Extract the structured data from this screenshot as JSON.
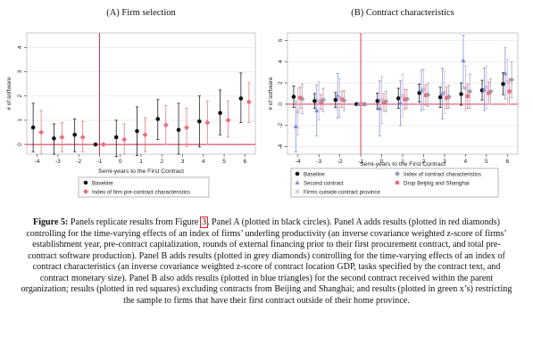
{
  "caption": {
    "label": "Figure 5:",
    "text_before_ref": " Panels replicate results from Figure ",
    "ref": "3",
    "text_after_ref": ". Panel A (plotted in black circles). Panel A adds results (plotted in red diamonds) controlling for the time-varying effects of an index of firms’ underling productivity (an inverse covariance weighted z-score of firms’ establishment year, pre-contract capitalization, rounds of external financing prior to their first procurement contract, and total pre-contract software production). Panel B adds results (plotted in grey diamonds) controlling for the time-varying effects of an index of contract characteristics (an inverse covariance weighted z-score of contract location GDP, tasks specified by the contract text, and contract monetary size). Panel B also adds results (plotted in blue triangles) for the second contract received within the parent organization; results (plotted in red squares) excluding contracts from Beijing and Shanghai; and results (plotted in green x’s) restricting the sample to firms that have their first contract outside of their home province."
  },
  "colors": {
    "baseline": "#111111",
    "red": "#e8707a",
    "grey": "#9aa0b4",
    "blue": "#7a8fd6",
    "green": "#c8aad6",
    "vline": "#d62040",
    "hline": "#d62040",
    "grid": "#e9e9e9"
  },
  "chart_data": [
    {
      "type": "scatter",
      "title": "(A) Firm selection",
      "xlabel": "Semi-years to the First Contract",
      "ylabel": "# of software",
      "x": [
        -4,
        -3,
        -2,
        -1,
        0,
        1,
        2,
        3,
        4,
        5,
        6
      ],
      "xlim": [
        -4.5,
        6.5
      ],
      "ylim": [
        -0.4,
        4.6
      ],
      "yticks": [
        0,
        1,
        2,
        3,
        4
      ],
      "grid": true,
      "reference_lines": {
        "x": -1,
        "y": 0
      },
      "legend_position": "bottom",
      "series": [
        {
          "name": "Baseline",
          "marker": "circle",
          "color": "baseline",
          "y": [
            0.7,
            0.25,
            0.4,
            0.0,
            0.3,
            0.55,
            1.05,
            0.6,
            0.95,
            1.3,
            1.9
          ],
          "lo": [
            -0.3,
            -0.4,
            -0.3,
            0.0,
            -0.5,
            -0.45,
            0.2,
            -0.4,
            -0.1,
            0.4,
            0.9
          ],
          "hi": [
            1.7,
            0.85,
            1.05,
            0.0,
            1.0,
            1.55,
            1.85,
            1.7,
            2.0,
            2.25,
            2.95
          ]
        },
        {
          "name": "Index of firm pre-contract characteristics",
          "marker": "diamond",
          "color": "red",
          "y": [
            0.5,
            0.3,
            0.3,
            0.0,
            0.2,
            0.4,
            0.8,
            0.7,
            0.9,
            1.0,
            1.75
          ],
          "lo": [
            -0.4,
            -0.3,
            -0.3,
            0.0,
            -0.4,
            -0.3,
            0.0,
            -0.1,
            0.0,
            0.3,
            0.9
          ],
          "hi": [
            1.4,
            0.9,
            0.95,
            0.0,
            0.85,
            1.1,
            1.6,
            1.5,
            1.8,
            1.8,
            2.55
          ]
        }
      ]
    },
    {
      "type": "scatter",
      "title": "(B) Contract characteristics",
      "xlabel": "Semi-years to the First Contract",
      "ylabel": "# of software",
      "x": [
        -4,
        -3,
        -2,
        -1,
        0,
        1,
        2,
        3,
        4,
        5,
        6
      ],
      "xlim": [
        -4.5,
        6.5
      ],
      "ylim": [
        -4.7,
        6.7
      ],
      "yticks": [
        -4,
        -2,
        0,
        2,
        4,
        6
      ],
      "grid": true,
      "reference_lines": {
        "x": -1,
        "y": 0
      },
      "legend_position": "bottom",
      "series": [
        {
          "name": "Baseline",
          "marker": "circle",
          "color": "baseline",
          "y": [
            0.7,
            0.3,
            0.4,
            0.0,
            0.3,
            0.55,
            1.05,
            0.65,
            0.95,
            1.3,
            1.9
          ],
          "lo": [
            -0.3,
            -0.4,
            -0.3,
            0.0,
            -0.45,
            -0.4,
            0.2,
            -0.3,
            -0.1,
            0.4,
            0.9
          ],
          "hi": [
            1.7,
            1.0,
            1.1,
            0.0,
            1.05,
            1.5,
            1.9,
            1.6,
            2.0,
            2.25,
            2.95
          ]
        },
        {
          "name": "Index of contract characteristics",
          "marker": "diamond",
          "color": "grey",
          "y": [
            0.5,
            0.4,
            0.35,
            0.0,
            0.25,
            0.5,
            0.9,
            0.7,
            1.2,
            1.2,
            2.3
          ],
          "lo": [
            -0.9,
            -0.7,
            -0.6,
            0.0,
            -0.7,
            -0.4,
            -0.2,
            -0.4,
            -0.4,
            0.0,
            0.6
          ],
          "hi": [
            1.9,
            1.5,
            1.3,
            0.0,
            1.2,
            1.4,
            2.0,
            1.8,
            2.8,
            2.4,
            4.0
          ]
        },
        {
          "name": "Second contract",
          "marker": "triangle",
          "color": "blue",
          "y": [
            -2.1,
            -0.6,
            0.8,
            0.0,
            -0.4,
            0.1,
            1.3,
            1.0,
            4.1,
            1.4,
            2.9
          ],
          "lo": [
            -4.5,
            -3.0,
            -1.3,
            0.0,
            -3.0,
            -2.0,
            -0.6,
            -1.4,
            1.5,
            -0.6,
            0.5
          ],
          "hi": [
            0.3,
            1.8,
            2.9,
            0.0,
            2.2,
            2.2,
            3.2,
            3.4,
            6.5,
            3.4,
            5.3
          ]
        },
        {
          "name": "Drop Beijing and Shanghai",
          "marker": "square",
          "color": "red",
          "y": [
            0.6,
            0.2,
            0.45,
            0.0,
            0.2,
            0.45,
            0.85,
            0.6,
            0.75,
            1.05,
            1.2
          ],
          "lo": [
            -0.4,
            -0.5,
            -0.3,
            0.0,
            -0.6,
            -0.5,
            -0.1,
            -0.4,
            -0.4,
            0.0,
            0.0
          ],
          "hi": [
            1.6,
            0.9,
            1.2,
            0.0,
            1.0,
            1.4,
            1.8,
            1.6,
            1.9,
            2.1,
            2.4
          ]
        },
        {
          "name": "Firms outside contract province",
          "marker": "x",
          "color": "green",
          "y": [
            -0.7,
            0.3,
            0.6,
            0.0,
            0.4,
            0.8,
            1.4,
            1.1,
            1.5,
            1.6,
            2.1
          ],
          "lo": [
            -2.9,
            -1.5,
            -1.2,
            0.0,
            -1.8,
            -1.2,
            -0.5,
            -0.9,
            -0.6,
            -0.4,
            0.0
          ],
          "hi": [
            1.5,
            2.1,
            2.4,
            0.0,
            2.6,
            2.8,
            3.3,
            3.1,
            3.6,
            3.6,
            4.2
          ]
        }
      ]
    }
  ]
}
